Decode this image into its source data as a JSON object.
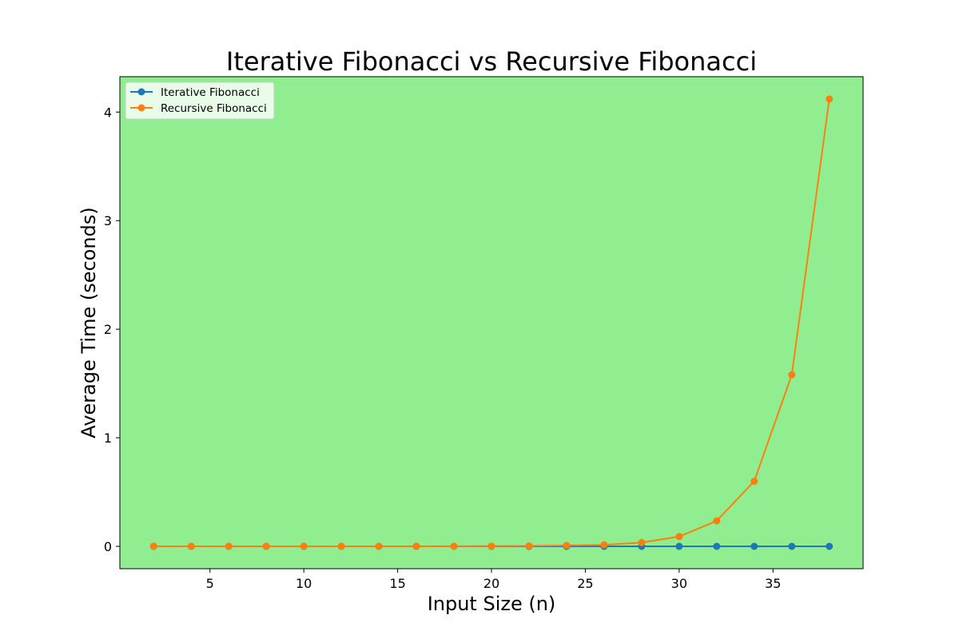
{
  "chart_data": {
    "type": "line",
    "title": "Iterative Fibonacci vs Recursive Fibonacci",
    "xlabel": "Input Size (n)",
    "ylabel": "Average Time (seconds)",
    "x": [
      2,
      4,
      6,
      8,
      10,
      12,
      14,
      16,
      18,
      20,
      22,
      24,
      26,
      28,
      30,
      32,
      34,
      36,
      38
    ],
    "xlim": [
      0.2,
      39.8
    ],
    "ylim": [
      -0.206,
      4.326
    ],
    "x_ticks": [
      5,
      10,
      15,
      20,
      25,
      30,
      35
    ],
    "y_ticks": [
      0,
      1,
      2,
      3,
      4
    ],
    "x_tick_labels": [
      "5",
      "10",
      "15",
      "20",
      "25",
      "30",
      "35"
    ],
    "y_tick_labels": [
      "0",
      "1",
      "2",
      "3",
      "4"
    ],
    "grid": false,
    "legend_position": "upper left",
    "background_color": "#90ee90",
    "series": [
      {
        "name": "Iterative Fibonacci",
        "color": "#1f77b4",
        "values": [
          0,
          0,
          0,
          0,
          0,
          0,
          0,
          0,
          0,
          0,
          0,
          0,
          0,
          0,
          0,
          0,
          0,
          0,
          0
        ]
      },
      {
        "name": "Recursive Fibonacci",
        "color": "#ff7f0e",
        "values": [
          0,
          0,
          0,
          0,
          0,
          0,
          0,
          0.0003,
          0.0008,
          0.002,
          0.004,
          0.008,
          0.014,
          0.035,
          0.09,
          0.235,
          0.6,
          1.58,
          4.12
        ]
      }
    ]
  }
}
